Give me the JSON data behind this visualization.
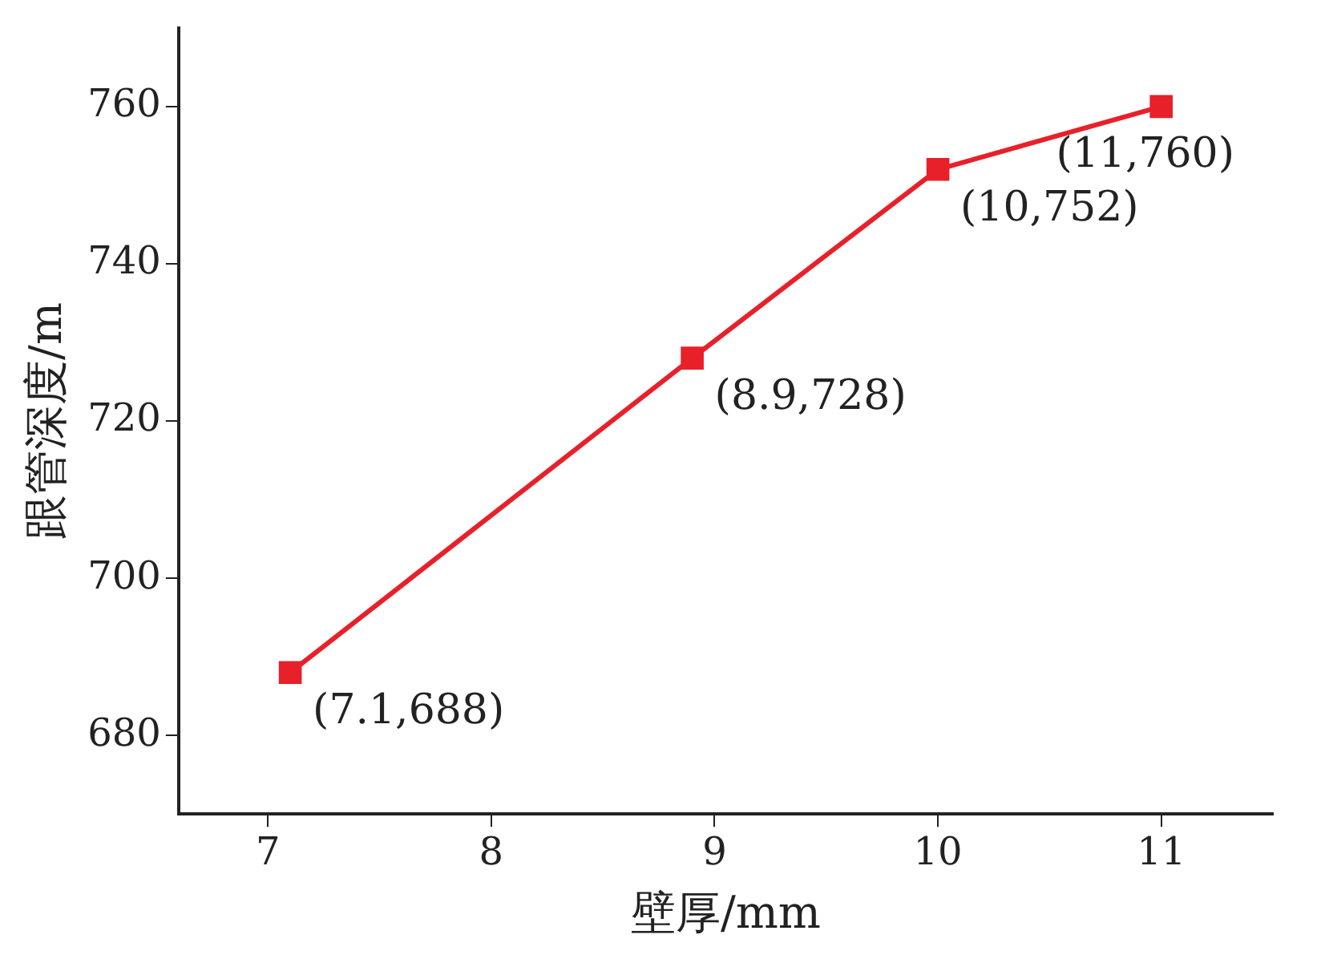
{
  "chart_data": {
    "type": "line",
    "xlabel": "壁厚/mm",
    "ylabel": "跟管深度/m",
    "x": [
      7.1,
      8.9,
      10,
      11
    ],
    "series": [
      {
        "color": "#e8202a",
        "values": [
          688,
          728,
          752,
          760
        ]
      }
    ],
    "xlim": [
      6.6,
      11.5
    ],
    "xticks": [
      7,
      8,
      9,
      10,
      11
    ],
    "ylim": [
      670,
      770
    ],
    "yticks": [
      680,
      700,
      720,
      740,
      760
    ],
    "grid": false,
    "legend": false,
    "marker": "square",
    "line_style": "solid",
    "annotations": [
      {
        "text": "(7.1,688)",
        "x": 7.1,
        "y": 688
      },
      {
        "text": "(8.9,728)",
        "x": 8.9,
        "y": 728
      },
      {
        "text": "(10,752)",
        "x": 10,
        "y": 752
      },
      {
        "text": "(11,760)",
        "x": 11,
        "y": 760
      }
    ]
  }
}
